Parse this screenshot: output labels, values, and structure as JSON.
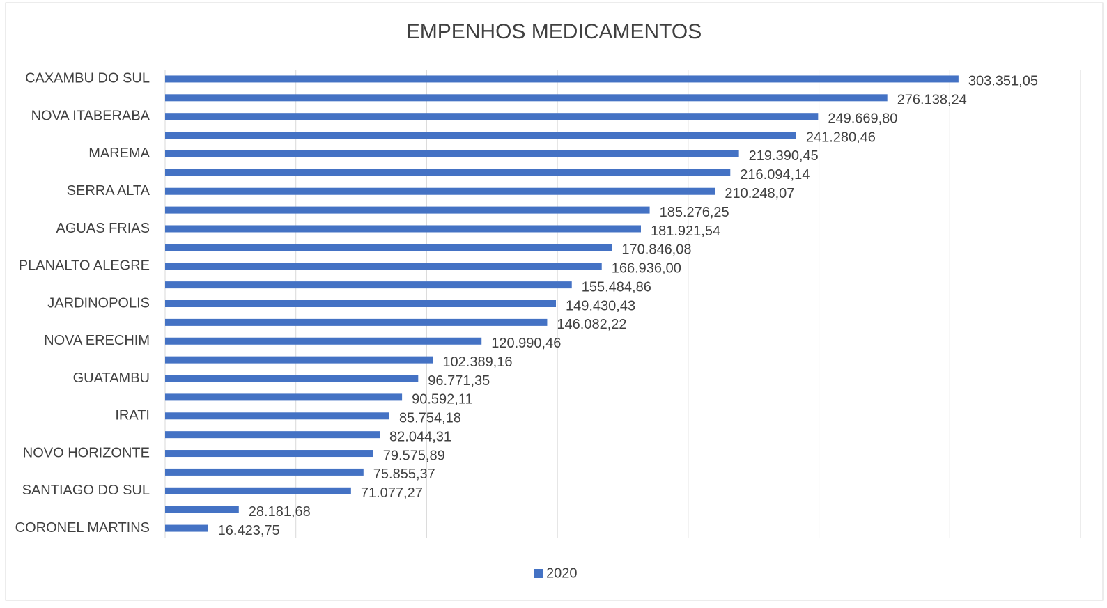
{
  "chart_data": {
    "type": "bar",
    "orientation": "horizontal",
    "title": "EMPENHOS MEDICAMENTOS",
    "categories": [
      "CAXAMBU DO SUL",
      null,
      "NOVA ITABERABA",
      null,
      "MAREMA",
      null,
      "SERRA ALTA",
      null,
      "AGUAS FRIAS",
      null,
      "PLANALTO ALEGRE",
      null,
      "JARDINOPOLIS",
      null,
      "NOVA ERECHIM",
      null,
      "GUATAMBU",
      null,
      "IRATI",
      null,
      "NOVO HORIZONTE",
      null,
      "SANTIAGO DO SUL",
      null,
      "CORONEL MARTINS"
    ],
    "series": [
      {
        "name": "2020",
        "color": "#4472c4",
        "values": [
          303351.05,
          276138.24,
          249669.8,
          241280.46,
          219390.45,
          216094.14,
          210248.07,
          185276.25,
          181921.54,
          170846.08,
          166936.0,
          155484.86,
          149430.43,
          146082.22,
          120990.46,
          102389.16,
          96771.35,
          90592.11,
          85754.18,
          82044.31,
          79575.89,
          75855.37,
          71077.27,
          28181.68,
          16423.75
        ],
        "value_labels": [
          "303.351,05",
          "276.138,24",
          "249.669,80",
          "241.280,46",
          "219.390,45",
          "216.094,14",
          "210.248,07",
          "185.276,25",
          "181.921,54",
          "170.846,08",
          "166.936,00",
          "155.484,86",
          "149.430,43",
          "146.082,22",
          "120.990,46",
          "102.389,16",
          "96.771,35",
          "90.592,11",
          "85.754,18",
          "82.044,31",
          "79.575,89",
          "75.855,37",
          "71.077,27",
          "28.181,68",
          "16.423,75"
        ]
      }
    ],
    "xlim": [
      0,
      350000
    ],
    "xticks": [
      0,
      50000,
      100000,
      150000,
      200000,
      250000,
      300000,
      350000
    ],
    "grid": true,
    "legend": "bottom"
  }
}
